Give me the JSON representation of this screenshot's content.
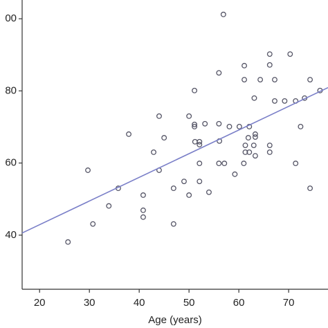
{
  "chart_data": {
    "type": "scatter",
    "x_label": "Age (years)",
    "xlim": [
      16.5,
      77.9
    ],
    "ylim": [
      25,
      105.2
    ],
    "xticks": [
      20,
      30,
      40,
      50,
      60,
      70
    ],
    "yticks": [
      {
        "value": 100,
        "label": "00"
      },
      80,
      60,
      40
    ],
    "grid": false,
    "color": "#555566",
    "x": [
      56.9,
      66.2,
      70.3,
      61.1,
      66.2,
      56.0,
      61.1,
      64.3,
      67.2,
      74.3,
      51.1,
      76.3,
      63.1,
      67.2,
      69.2,
      71.4,
      73.2,
      44.0,
      50.0,
      51.1,
      51.1,
      53.2,
      56.0,
      58.1,
      60.1,
      62.1,
      37.9,
      45.0,
      61.9,
      63.3,
      63.3,
      51.2,
      52.1,
      56.1,
      52.1,
      61.3,
      63.0,
      66.2,
      72.4,
      42.9,
      61.3,
      62.1,
      66.2,
      63.3,
      52.1,
      56.0,
      57.1,
      61.0,
      71.4,
      29.7,
      44.0,
      59.2,
      35.8,
      46.9,
      49.0,
      52.1,
      54.0,
      50.0,
      40.8,
      33.9,
      40.8,
      40.8,
      74.3,
      30.7,
      46.9,
      25.7
    ],
    "y": [
      101.2,
      90.2,
      90.2,
      87.0,
      87.2,
      85.0,
      83.1,
      83.1,
      83.1,
      83.1,
      80.1,
      80.1,
      78.0,
      77.2,
      77.2,
      77.2,
      78.0,
      73.0,
      73.0,
      70.7,
      70.1,
      70.9,
      70.9,
      70.1,
      70.1,
      70.1,
      68.0,
      67.0,
      67.0,
      68.0,
      67.2,
      65.9,
      65.9,
      66.1,
      65.1,
      64.9,
      64.9,
      64.9,
      70.1,
      63.0,
      63.0,
      63.0,
      63.0,
      62.0,
      59.9,
      59.9,
      59.9,
      59.9,
      59.9,
      58.0,
      58.0,
      56.9,
      53.0,
      53.0,
      54.9,
      54.9,
      51.9,
      51.1,
      51.1,
      48.1,
      46.9,
      45.0,
      53.0,
      43.1,
      43.1,
      38.1
    ],
    "trend_line": {
      "x": [
        16.5,
        77.9
      ],
      "y": [
        40.6,
        80.9
      ],
      "color": "#7a7fc8"
    }
  }
}
